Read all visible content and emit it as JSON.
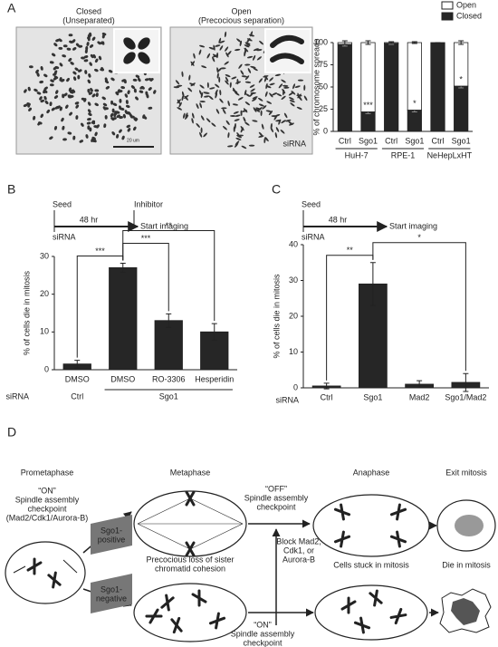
{
  "panel_labels": [
    "A",
    "B",
    "C",
    "D"
  ],
  "panel_a": {
    "images": [
      {
        "title": "Closed",
        "subtitle": "(Unseparated)",
        "scale_bar": "20 um"
      },
      {
        "title": "Open",
        "subtitle": "(Precocious separation)"
      }
    ]
  },
  "chart_data": [
    {
      "type": "stacked_bar",
      "y_label": "% of chromosome spreads",
      "x_label": "siRNA",
      "categories": [
        "Ctrl",
        "Sgo1",
        "Ctrl",
        "Sgo1",
        "Ctrl",
        "Sgo1"
      ],
      "groups": [
        "HuH-7",
        "RPE-1",
        "NeHepLxHT"
      ],
      "series": [
        {
          "name": "Closed",
          "color": "#262626",
          "values": [
            98,
            22,
            99,
            24,
            100,
            51
          ],
          "errors": [
            2,
            2,
            1,
            2,
            0,
            2
          ]
        },
        {
          "name": "Open",
          "color": "#ffffff",
          "values": [
            2,
            78,
            1,
            76,
            0,
            49
          ],
          "errors": [
            2,
            2,
            1,
            1,
            0,
            2
          ]
        }
      ],
      "ylim": [
        0,
        100
      ],
      "yticks": [
        0,
        25,
        50,
        75,
        100
      ],
      "annotations": [
        {
          "label": "***",
          "category": 1
        },
        {
          "label": "*",
          "category": 3
        },
        {
          "label": "*",
          "category": 5
        }
      ],
      "legend": "top-right"
    },
    {
      "type": "bar",
      "y_label": "% of cells die in mitosis",
      "x_label": "siRNA",
      "categories": [
        "DMSO",
        "DMSO",
        "RO-3306",
        "Hesperidin"
      ],
      "groups": [
        "Ctrl",
        "Sgo1"
      ],
      "color": "#262626",
      "values": [
        1.5,
        27,
        13,
        10
      ],
      "errors": [
        1,
        1.2,
        1.8,
        2.2
      ],
      "ylim": [
        0,
        30
      ],
      "yticks": [
        0,
        10,
        20,
        30
      ],
      "significance": [
        {
          "label": "***",
          "from": 0,
          "to": 1
        },
        {
          "label": "***",
          "from": 1,
          "to": 2
        },
        {
          "label": "**",
          "from": 1,
          "to": 3
        }
      ]
    },
    {
      "type": "bar",
      "y_label": "% of cells die in mitosis",
      "x_label": "siRNA",
      "categories": [
        "Ctrl",
        "Sgo1",
        "Mad2",
        "Sgo1/Mad2"
      ],
      "color": "#262626",
      "values": [
        0.5,
        29,
        1,
        1.5
      ],
      "errors": [
        0.8,
        6,
        1,
        2.5
      ],
      "ylim": [
        0,
        40
      ],
      "yticks": [
        0,
        10,
        20,
        30,
        40
      ],
      "significance": [
        {
          "label": "**",
          "from": 0,
          "to": 1
        },
        {
          "label": "*",
          "from": 1,
          "to": 3
        }
      ]
    }
  ],
  "schematics": [
    {
      "seed": "Seed",
      "duration": "48 hr",
      "inhibitor": "Inhibitor",
      "sirna": "siRNA",
      "start": "Start imaging"
    },
    {
      "seed": "Seed",
      "duration": "48 hr",
      "sirna": "siRNA",
      "start": "Start imaging"
    }
  ],
  "diagram": {
    "prometaphase": "Prometaphase",
    "metaphase": "Metaphase",
    "anaphase": "Anaphase",
    "exit": "Exit mitosis",
    "stuck": "Cells stuck in mitosis",
    "die": "Die in mitosis",
    "checkpoint_on": [
      "“ON”",
      "Spindle assembly",
      "checkpoint",
      "(Mad2/Cdk1/Aurora-B)"
    ],
    "sgo1_positive": [
      "Sgo1-",
      "positive"
    ],
    "sgo1_negative": [
      "Sgo1-",
      "negative"
    ],
    "precocious": [
      "Precocious loss of sister",
      "chromatid cohesion"
    ],
    "checkpoint_off": [
      "“OFF”",
      "Spindle assembly",
      "checkpoint"
    ],
    "block": [
      "Block Mad2,",
      "Cdk1,   or",
      "Aurora-B"
    ],
    "checkpoint_on_2": [
      "“ON”",
      "Spindle assembly",
      "checkpoint"
    ]
  }
}
